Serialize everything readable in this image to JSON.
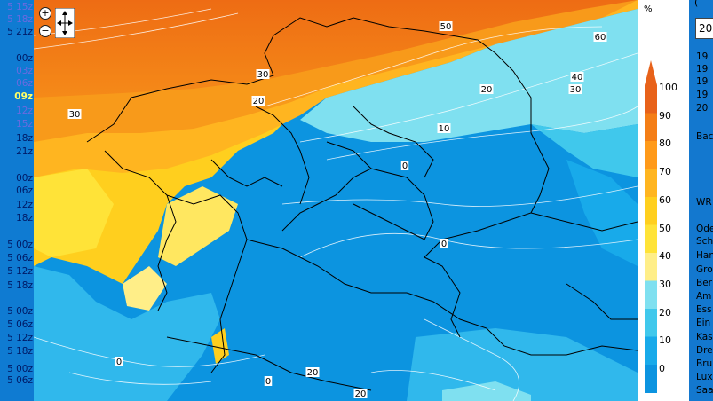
{
  "time_list": [
    {
      "label": "5 15z",
      "style": "alt"
    },
    {
      "label": "5 18z",
      "style": "alt"
    },
    {
      "label": "5 21z",
      "style": "normal"
    },
    {
      "label": "00z",
      "style": "normal"
    },
    {
      "label": "03z",
      "style": "alt"
    },
    {
      "label": "06z",
      "style": "alt"
    },
    {
      "label": "09z",
      "style": "current"
    },
    {
      "label": "12z",
      "style": "alt"
    },
    {
      "label": "15z",
      "style": "alt"
    },
    {
      "label": "18z",
      "style": "normal"
    },
    {
      "label": "21z",
      "style": "normal"
    },
    {
      "label": "00z",
      "style": "normal"
    },
    {
      "label": "06z",
      "style": "normal"
    },
    {
      "label": "12z",
      "style": "normal"
    },
    {
      "label": "18z",
      "style": "normal"
    },
    {
      "label": "5 00z",
      "style": "normal"
    },
    {
      "label": "5 06z",
      "style": "normal"
    },
    {
      "label": "5 12z",
      "style": "normal"
    },
    {
      "label": "5 18z",
      "style": "normal"
    },
    {
      "label": "5 00z",
      "style": "normal"
    },
    {
      "label": "5 06z",
      "style": "normal"
    },
    {
      "label": "5 12z",
      "style": "normal"
    },
    {
      "label": "5 18z",
      "style": "normal"
    },
    {
      "label": "5 00z",
      "style": "normal"
    },
    {
      "label": "5 06z",
      "style": "normal"
    }
  ],
  "legend": {
    "unit": "%",
    "ticks": [
      "100",
      "90",
      "80",
      "70",
      "60",
      "50",
      "40",
      "30",
      "20",
      "10",
      "0"
    ],
    "colors": [
      "#e8621a",
      "#f47e16",
      "#ff9a1a",
      "#ffb520",
      "#ffcf1e",
      "#ffe338",
      "#ffee88",
      "#7fe0f0",
      "#40c8ec",
      "#18aaea",
      "#0c94e0"
    ]
  },
  "map_labels": [
    "50",
    "60",
    "30",
    "40",
    "30",
    "20",
    "30",
    "20",
    "10",
    "0",
    "0",
    "0",
    "0",
    "20",
    "20"
  ],
  "right_panel": {
    "bracket": "(",
    "year_value": "20",
    "lines": [
      "19",
      "19",
      "19",
      "19",
      "20",
      "Bac",
      "WR",
      "Ode",
      "Sch",
      "Han",
      "Gro",
      "Ber",
      "Am",
      "Ess",
      "Ein",
      "Kas",
      "Dre",
      "Bru",
      "Lux",
      "Saa"
    ]
  },
  "nav": {
    "zoom_in": "+",
    "zoom_out": "−"
  }
}
